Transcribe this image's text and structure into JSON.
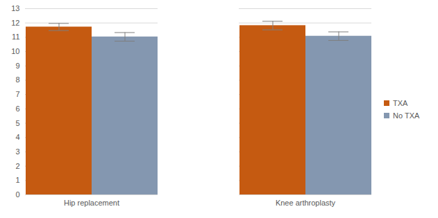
{
  "chart_data": {
    "type": "bar",
    "categories": [
      "Hip replacement",
      "Knee arthroplasty"
    ],
    "series": [
      {
        "name": "TXA",
        "color": "#c55a11",
        "values": [
          11.72,
          11.82
        ],
        "errors": [
          0.25,
          0.3
        ]
      },
      {
        "name": "No TXA",
        "color": "#8497b0",
        "values": [
          11.03,
          11.08
        ],
        "errors": [
          0.3,
          0.3
        ]
      }
    ],
    "ylim": [
      0,
      13
    ],
    "yticks": [
      0,
      1,
      2,
      3,
      4,
      5,
      6,
      7,
      8,
      9,
      10,
      11,
      12,
      13
    ],
    "grid": true,
    "legend": "right"
  }
}
